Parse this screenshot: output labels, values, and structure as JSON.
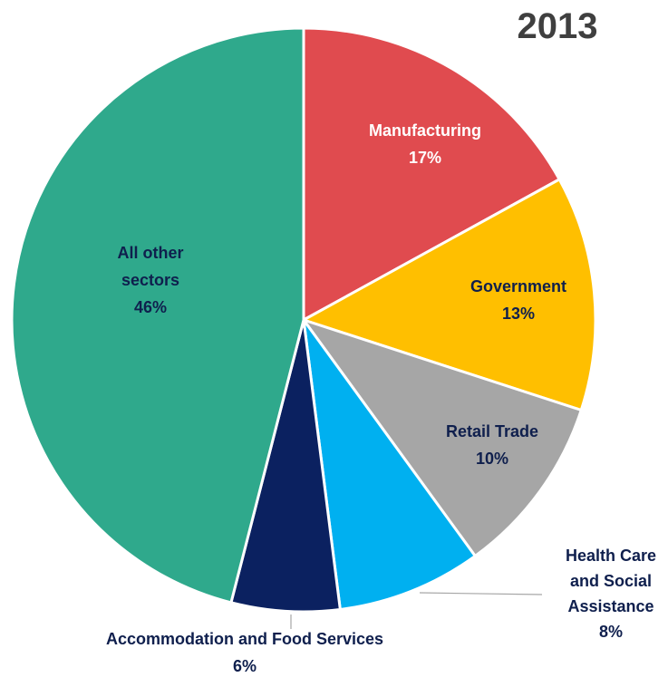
{
  "chart_data": {
    "type": "pie",
    "title": "2013",
    "slices": [
      {
        "label": "Manufacturing",
        "label_lines": [
          "Manufacturing"
        ],
        "value": 17,
        "value_label": "17%",
        "color": "#e04b4f",
        "label_color": "#ffffff"
      },
      {
        "label": "Government",
        "label_lines": [
          "Government"
        ],
        "value": 13,
        "value_label": "13%",
        "color": "#ffbf00",
        "label_color": "#0f1f4d"
      },
      {
        "label": "Retail Trade",
        "label_lines": [
          "Retail Trade"
        ],
        "value": 10,
        "value_label": "10%",
        "color": "#a6a6a6",
        "label_color": "#0f1f4d"
      },
      {
        "label": "Health Care and Social Assistance",
        "label_lines": [
          "Health Care",
          "and Social",
          "Assistance"
        ],
        "value": 8,
        "value_label": "8%",
        "color": "#00b0f0",
        "label_color": "#0f1f4d"
      },
      {
        "label": "Accommodation and Food Services",
        "label_lines": [
          "Accommodation and Food Services"
        ],
        "value": 6,
        "value_label": "6%",
        "color": "#0b2160",
        "label_color": "#0f1f4d"
      },
      {
        "label": "All other sectors",
        "label_lines": [
          "All other",
          "sectors"
        ],
        "value": 46,
        "value_label": "46%",
        "color": "#2fa98c",
        "label_color": "#0f1f4d"
      }
    ],
    "start_angle_deg": 0,
    "direction": "clockwise",
    "legend": "none"
  }
}
